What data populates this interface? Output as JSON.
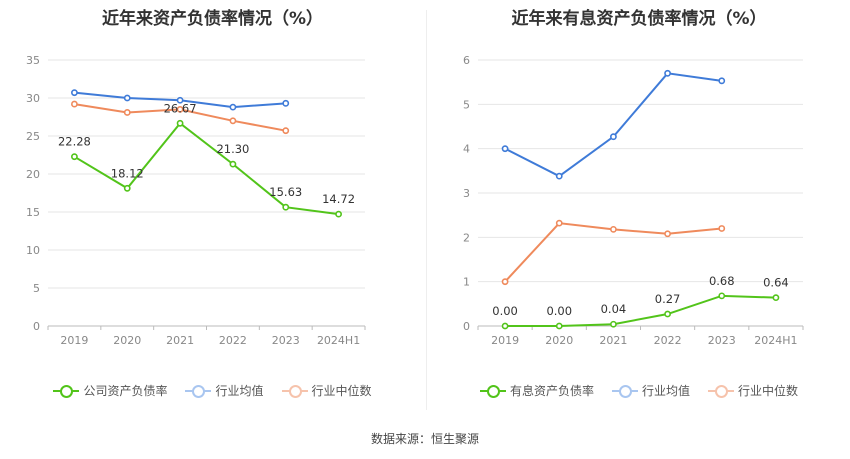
{
  "colors": {
    "company": "#52c41a",
    "avg": "#3f7bd8",
    "median": "#ef8a5c"
  },
  "chart_data": [
    {
      "type": "line",
      "title": "近年来资产负债率情况（%）",
      "categories": [
        "2019",
        "2020",
        "2021",
        "2022",
        "2023",
        "2024H1"
      ],
      "ylim": [
        0,
        35
      ],
      "yticks": [
        "0",
        "5",
        "10",
        "15",
        "20",
        "25",
        "30",
        "35"
      ],
      "grid": true,
      "legend_position": "bottom",
      "series": [
        {
          "name": "公司资产负债率",
          "color": "#52c41a",
          "labeled": true,
          "values": [
            22.28,
            18.12,
            26.67,
            21.3,
            15.63,
            14.72
          ],
          "labels": [
            "22.28",
            "18.12",
            "26.67",
            "21.30",
            "15.63",
            "14.72"
          ]
        },
        {
          "name": "行业均值",
          "color": "#3f7bd8",
          "labeled": false,
          "values": [
            30.7,
            30.0,
            29.7,
            28.8,
            29.3,
            null
          ]
        },
        {
          "name": "行业中位数",
          "color": "#ef8a5c",
          "labeled": false,
          "values": [
            29.2,
            28.1,
            28.5,
            27.0,
            25.7,
            null
          ]
        }
      ]
    },
    {
      "type": "line",
      "title": "近年来有息资产负债率情况（%）",
      "categories": [
        "2019",
        "2020",
        "2021",
        "2022",
        "2023",
        "2024H1"
      ],
      "ylim": [
        0,
        6
      ],
      "yticks": [
        "0",
        "1",
        "2",
        "3",
        "4",
        "5",
        "6"
      ],
      "grid": true,
      "legend_position": "bottom",
      "series": [
        {
          "name": "有息资产负债率",
          "color": "#52c41a",
          "labeled": true,
          "values": [
            0.0,
            0.0,
            0.04,
            0.27,
            0.68,
            0.64
          ],
          "labels": [
            "0.00",
            "0.00",
            "0.04",
            "0.27",
            "0.68",
            "0.64"
          ]
        },
        {
          "name": "行业均值",
          "color": "#3f7bd8",
          "labeled": false,
          "values": [
            4.0,
            3.38,
            4.27,
            5.7,
            5.53,
            null
          ]
        },
        {
          "name": "行业中位数",
          "color": "#ef8a5c",
          "labeled": false,
          "values": [
            1.0,
            2.32,
            2.18,
            2.08,
            2.2,
            null
          ]
        }
      ]
    }
  ],
  "footer": {
    "source": "数据来源：恒生聚源"
  }
}
